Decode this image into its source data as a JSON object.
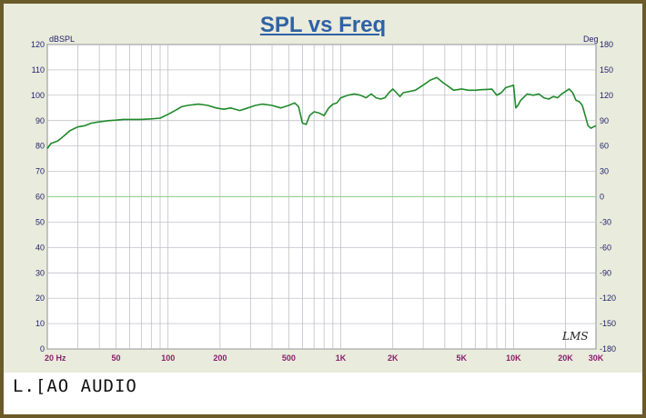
{
  "page": {
    "title": "SPL vs Freq",
    "left_unit": "dBSPL",
    "right_unit": "Deg",
    "logo_text": "L.[AO AUDIO",
    "signature": "LMS"
  },
  "chart_data": {
    "type": "line",
    "title": "SPL vs Freq",
    "xscale": "log",
    "xlim": [
      20,
      30000
    ],
    "ylim": [
      0,
      120
    ],
    "y2lim": [
      -180,
      180
    ],
    "x_tick_labels": [
      "20 Hz",
      "50",
      "100",
      "200",
      "500",
      "1K",
      "2K",
      "5K",
      "10K",
      "20K",
      "30K"
    ],
    "x_tick_values": [
      20,
      50,
      100,
      200,
      500,
      1000,
      2000,
      5000,
      10000,
      20000,
      30000
    ],
    "y_ticks": [
      0,
      10,
      20,
      30,
      40,
      50,
      60,
      70,
      80,
      90,
      100,
      110,
      120
    ],
    "y2_ticks": [
      -180,
      -150,
      -120,
      -90,
      -60,
      -30,
      0,
      30,
      60,
      90,
      120,
      150,
      180
    ],
    "grid": true,
    "colors": {
      "spl": "#1f8a2a",
      "phase": "#8fd08f",
      "xtick": "#8a1f6b",
      "ytick": "#1f1f6b",
      "title": "#2f62a5",
      "plot_bg": "#ffffff",
      "grid": "#b8b8c0"
    },
    "series": [
      {
        "x": [
          20,
          21,
          23,
          25,
          27,
          30,
          33,
          36,
          40,
          45,
          50,
          55,
          60,
          70,
          80,
          90,
          100,
          110,
          120,
          130,
          150,
          170,
          190,
          210,
          230,
          260,
          290,
          320,
          350,
          400,
          450,
          500,
          540,
          570,
          600,
          630,
          660,
          700,
          750,
          800,
          850,
          900,
          950,
          1000,
          1100,
          1200,
          1300,
          1400,
          1500,
          1600,
          1700,
          1800,
          1900,
          2000,
          2100,
          2200,
          2300,
          2500,
          2700,
          3000,
          3300,
          3600,
          3900,
          4200,
          4500,
          5000,
          5500,
          6000,
          6500,
          7000,
          7500,
          8000,
          8500,
          9000,
          9500,
          10000,
          10300,
          10600,
          11000,
          12000,
          13000,
          14000,
          15000,
          16000,
          17000,
          18000,
          19000,
          20000,
          21000,
          22000,
          23000,
          24000,
          25000,
          26000,
          27000,
          28000,
          29000,
          30000
        ],
        "values": [
          79,
          81,
          82,
          84,
          86,
          87.5,
          88,
          89,
          89.5,
          90,
          90.2,
          90.5,
          90.5,
          90.5,
          90.7,
          91,
          92.5,
          94,
          95.5,
          96,
          96.5,
          96,
          95,
          94.5,
          95,
          94,
          95,
          96,
          96.5,
          96,
          95,
          96,
          97,
          95.5,
          89,
          88.5,
          92,
          93.5,
          93,
          92,
          95,
          96.5,
          97,
          99,
          100,
          100.5,
          100,
          99,
          100.5,
          99,
          98.5,
          99,
          101,
          102.5,
          101,
          99.5,
          101,
          101.5,
          102,
          104,
          106,
          107,
          105,
          103.5,
          102,
          102.5,
          102,
          102,
          102.2,
          102.3,
          102.4,
          100,
          101,
          103,
          103.5,
          104,
          95,
          96,
          98,
          100.5,
          100,
          100.5,
          99,
          98.5,
          99.5,
          99,
          100.5,
          101.5,
          102.5,
          101,
          98,
          97.5,
          96,
          92,
          88,
          87,
          87.5,
          88
        ]
      }
    ]
  }
}
